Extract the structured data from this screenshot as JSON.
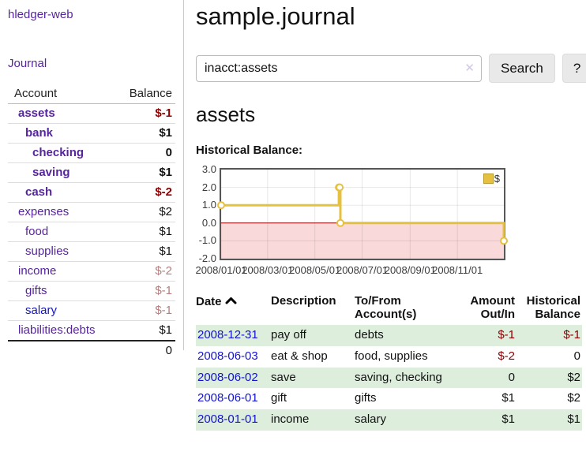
{
  "app": {
    "title": "hledger-web"
  },
  "colors": {
    "link_purple": "#56249e",
    "link_blue": "#1313d2",
    "negative": "#8b0000",
    "negative_soft": "#b57d7d",
    "row_green": "#ddeedd"
  },
  "sidebar": {
    "journal_link": "Journal",
    "table": {
      "account_header": "Account",
      "balance_header": "Balance",
      "rows": [
        {
          "account": "assets",
          "balance": "$-1",
          "depth": 1,
          "bold": true,
          "balance_class": "neg",
          "link": "purple"
        },
        {
          "account": "bank",
          "balance": "$1",
          "depth": 2,
          "bold": true,
          "balance_class": "",
          "link": "purple"
        },
        {
          "account": "checking",
          "balance": "0",
          "depth": 3,
          "bold": true,
          "balance_class": "",
          "link": "purple"
        },
        {
          "account": "saving",
          "balance": "$1",
          "depth": 3,
          "bold": true,
          "balance_class": "",
          "link": "purple"
        },
        {
          "account": "cash",
          "balance": "$-2",
          "depth": 2,
          "bold": true,
          "balance_class": "neg",
          "link": "purple"
        },
        {
          "account": "expenses",
          "balance": "$2",
          "depth": 1,
          "bold": false,
          "balance_class": "",
          "link": "purple"
        },
        {
          "account": "food",
          "balance": "$1",
          "depth": 2,
          "bold": false,
          "balance_class": "",
          "link": "purple"
        },
        {
          "account": "supplies",
          "balance": "$1",
          "depth": 2,
          "bold": false,
          "balance_class": "",
          "link": "purple"
        },
        {
          "account": "income",
          "balance": "$-2",
          "depth": 1,
          "bold": false,
          "balance_class": "neg-soft",
          "link": "purple"
        },
        {
          "account": "gifts",
          "balance": "$-1",
          "depth": 2,
          "bold": false,
          "balance_class": "neg-soft",
          "link": "purple"
        },
        {
          "account": "salary",
          "balance": "$-1",
          "depth": 2,
          "bold": false,
          "balance_class": "neg-soft",
          "link": "blue"
        },
        {
          "account": "liabilities:debts",
          "balance": "$1",
          "depth": 1,
          "bold": false,
          "balance_class": "",
          "link": "purple"
        }
      ],
      "total": "0"
    }
  },
  "main": {
    "title": "sample.journal",
    "search": {
      "value": "inacct:assets",
      "clear_icon": "✕",
      "search_button": "Search",
      "help_button": "?"
    },
    "account_heading": "assets",
    "chart_title": "Historical Balance:"
  },
  "chart_data": {
    "type": "line",
    "step": true,
    "title": "Historical Balance",
    "series": [
      {
        "name": "$",
        "points": [
          [
            "2008-01-01",
            1
          ],
          [
            "2008-06-01",
            2
          ],
          [
            "2008-06-02",
            2
          ],
          [
            "2008-06-03",
            0
          ],
          [
            "2008-12-31",
            -1
          ]
        ]
      }
    ],
    "x_ticks": [
      "2008/01/01",
      "2008/03/01",
      "2008/05/01",
      "2008/07/01",
      "2008/09/01",
      "2008/11/01"
    ],
    "y_ticks": [
      "3.0",
      "2.0",
      "1.0",
      "0.0",
      "-1.0",
      "-2.0"
    ],
    "xlim": [
      "2008-01-01",
      "2008-12-31"
    ],
    "ylim": [
      -2,
      3
    ],
    "grid": true,
    "legend_position": "top-right",
    "colors": {
      "line": "#e6c13f",
      "marker_fill": "#ffffff",
      "negative_bg": "#f9d9d9",
      "zero_line": "#990000"
    }
  },
  "transactions": {
    "headers": [
      "Date",
      "Description",
      "To/From Account(s)",
      "Amount Out/In",
      "Historical Balance"
    ],
    "rows": [
      {
        "date": "2008-12-31",
        "description": "pay off",
        "accounts": "debts",
        "amount": "$-1",
        "balance": "$-1",
        "amount_class": "neg",
        "balance_class": "neg"
      },
      {
        "date": "2008-06-03",
        "description": "eat & shop",
        "accounts": "food, supplies",
        "amount": "$-2",
        "balance": "0",
        "amount_class": "neg",
        "balance_class": ""
      },
      {
        "date": "2008-06-02",
        "description": "save",
        "accounts": "saving, checking",
        "amount": "0",
        "balance": "$2",
        "amount_class": "",
        "balance_class": ""
      },
      {
        "date": "2008-06-01",
        "description": "gift",
        "accounts": "gifts",
        "amount": "$1",
        "balance": "$2",
        "amount_class": "",
        "balance_class": ""
      },
      {
        "date": "2008-01-01",
        "description": "income",
        "accounts": "salary",
        "amount": "$1",
        "balance": "$1",
        "amount_class": "",
        "balance_class": ""
      }
    ]
  }
}
